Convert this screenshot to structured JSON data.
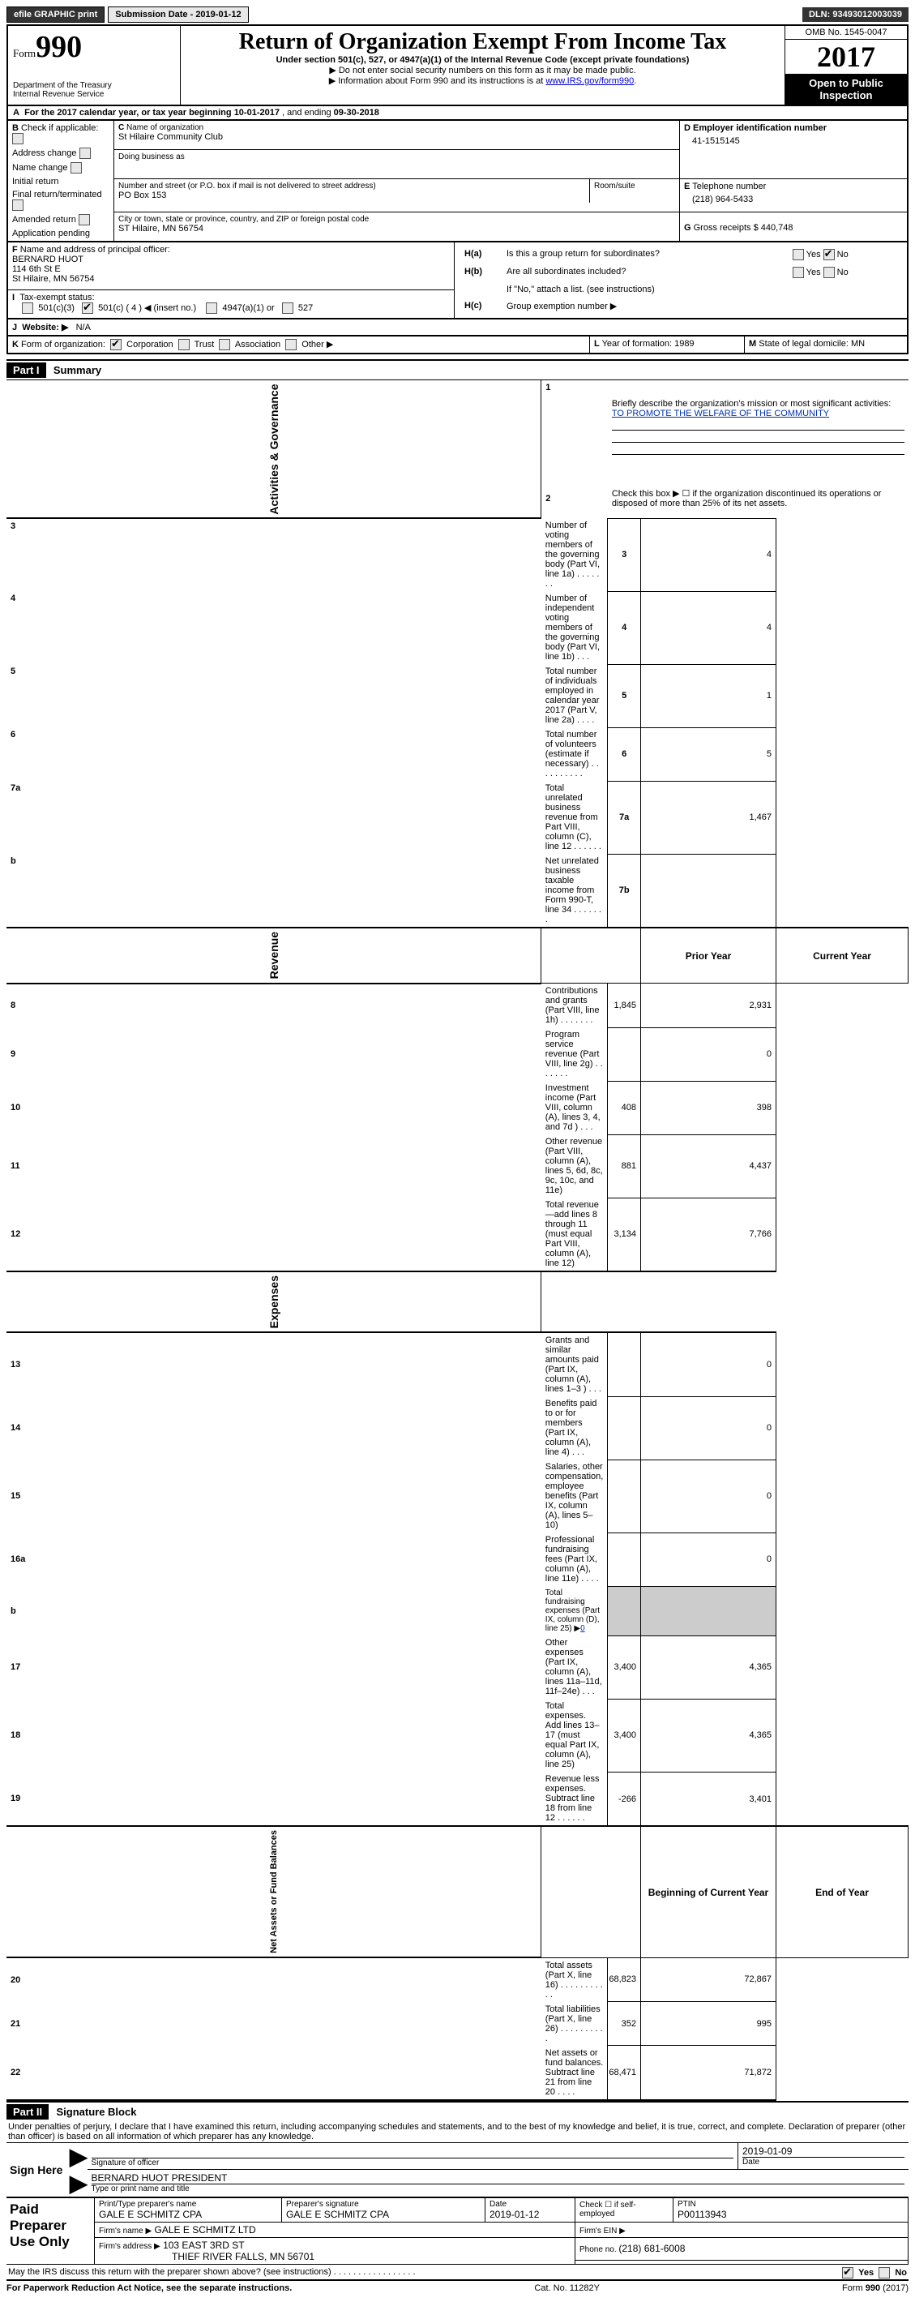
{
  "topbar": {
    "efile_label": "efile GRAPHIC print",
    "submission_label": "Submission Date - 2019-01-12",
    "dln_label": "DLN: 93493012003039"
  },
  "header": {
    "form_prefix": "Form",
    "form_number": "990",
    "dept": "Department of the Treasury",
    "irs": "Internal Revenue Service",
    "title": "Return of Organization Exempt From Income Tax",
    "subtitle": "Under section 501(c), 527, or 4947(a)(1) of the Internal Revenue Code (except private foundations)",
    "instr1": "▶ Do not enter social security numbers on this form as it may be made public.",
    "instr2_pre": "▶ Information about Form 990 and its instructions is at ",
    "instr2_link": "www.IRS.gov/form990",
    "omb": "OMB No. 1545-0047",
    "year": "2017",
    "open_public": "Open to Public Inspection"
  },
  "lineA": {
    "label_pre": "For the 2017 calendar year, or tax year beginning ",
    "begin": "10-01-2017",
    "mid": " , and ending ",
    "end": "09-30-2018"
  },
  "boxB": {
    "label": "Check if applicable:",
    "addr": "Address change",
    "name": "Name change",
    "initial": "Initial return",
    "final": "Final return/terminated",
    "amended": "Amended return",
    "pending": "Application pending"
  },
  "boxC": {
    "name_label": "Name of organization",
    "name": "St Hilaire Community Club",
    "dba_label": "Doing business as",
    "street_label": "Number and street (or P.O. box if mail is not delivered to street address)",
    "street": "PO Box 153",
    "room_label": "Room/suite",
    "city_label": "City or town, state or province, country, and ZIP or foreign postal code",
    "city": "ST Hilaire, MN  56754"
  },
  "boxD": {
    "label": "Employer identification number",
    "value": "41-1515145"
  },
  "boxE": {
    "label": "Telephone number",
    "value": "(218) 964-5433"
  },
  "boxG": {
    "label": "Gross receipts $ ",
    "value": "440,748"
  },
  "boxF": {
    "label": "Name and address of principal officer:",
    "name": "BERNARD HUOT",
    "street": "114 6th St E",
    "city": "St Hilaire, MN  56754"
  },
  "boxH": {
    "a_label": "Is this a group return for subordinates?",
    "b_label": "Are all subordinates included?",
    "b_note": "If \"No,\" attach a list. (see instructions)",
    "c_label": "Group exemption number ▶",
    "yes": "Yes",
    "no": "No"
  },
  "taxExempt": {
    "label": "Tax-exempt status:",
    "c501c3": "501(c)(3)",
    "c501c": "501(c) (",
    "c501c_num": "4",
    "c501c_suffix": ") ◀ (insert no.)",
    "c4947": "4947(a)(1) or",
    "c527": "527"
  },
  "website": {
    "label": "Website: ▶",
    "value": "N/A"
  },
  "formOrg": {
    "label": "Form of organization:",
    "corp": "Corporation",
    "trust": "Trust",
    "assoc": "Association",
    "other": "Other ▶"
  },
  "boxL": {
    "label": "Year of formation: ",
    "value": "1989"
  },
  "boxM": {
    "label": "State of legal domicile: ",
    "value": "MN"
  },
  "part1": {
    "header": "Part I",
    "title": "Summary",
    "q1": "Briefly describe the organization's mission or most significant activities:",
    "mission": "TO PROMOTE THE WELFARE OF THE COMMUNITY",
    "q2": "Check this box ▶ ☐  if the organization discontinued its operations or disposed of more than 25% of its net assets.",
    "vert_activities": "Activities & Governance",
    "vert_revenue": "Revenue",
    "vert_expenses": "Expenses",
    "vert_net": "Net Assets or Fund Balances",
    "prior_year": "Prior Year",
    "current_year": "Current Year",
    "begin_year": "Beginning of Current Year",
    "end_year": "End of Year",
    "rows_gov": [
      {
        "n": "3",
        "label": "Number of voting members of the governing body (Part VI, line 1a)   .    .    .    .    .    .    .",
        "box": "3",
        "val": "4"
      },
      {
        "n": "4",
        "label": "Number of independent voting members of the governing body (Part VI, line 1b)    .    .    .",
        "box": "4",
        "val": "4"
      },
      {
        "n": "5",
        "label": "Total number of individuals employed in calendar year 2017 (Part V, line 2a)    .    .    .    .",
        "box": "5",
        "val": "1"
      },
      {
        "n": "6",
        "label": "Total number of volunteers (estimate if necessary)    .    .    .    .    .    .    .    .    .    .",
        "box": "6",
        "val": "5"
      },
      {
        "n": "7a",
        "label": "Total unrelated business revenue from Part VIII, column (C), line 12    .    .    .    .    .    .",
        "box": "7a",
        "val": "1,467"
      },
      {
        "n": "b",
        "label": "Net unrelated business taxable income from Form 990-T, line 34    .    .    .    .    .    .    .",
        "box": "7b",
        "val": ""
      }
    ],
    "rows_rev": [
      {
        "n": "8",
        "label": "Contributions and grants (Part VIII, line 1h)    .    .    .    .    .    .    .",
        "py": "1,845",
        "cy": "2,931"
      },
      {
        "n": "9",
        "label": "Program service revenue (Part VIII, line 2g)    .    .    .    .    .    .    .",
        "py": "",
        "cy": "0"
      },
      {
        "n": "10",
        "label": "Investment income (Part VIII, column (A), lines 3, 4, and 7d )    .    .    .",
        "py": "408",
        "cy": "398"
      },
      {
        "n": "11",
        "label": "Other revenue (Part VIII, column (A), lines 5, 6d, 8c, 9c, 10c, and 11e)",
        "py": "881",
        "cy": "4,437"
      },
      {
        "n": "12",
        "label": "Total revenue—add lines 8 through 11 (must equal Part VIII, column (A), line 12)",
        "py": "3,134",
        "cy": "7,766"
      }
    ],
    "rows_exp": [
      {
        "n": "13",
        "label": "Grants and similar amounts paid (Part IX, column (A), lines 1–3 )    .    .    .",
        "py": "",
        "cy": "0"
      },
      {
        "n": "14",
        "label": "Benefits paid to or for members (Part IX, column (A), line 4)    .    .    .",
        "py": "",
        "cy": "0"
      },
      {
        "n": "15",
        "label": "Salaries, other compensation, employee benefits (Part IX, column (A), lines 5–10)",
        "py": "",
        "cy": "0"
      },
      {
        "n": "16a",
        "label": "Professional fundraising fees (Part IX, column (A), line 11e)    .    .    .    .",
        "py": "",
        "cy": "0"
      },
      {
        "n": "b",
        "label": "Total fundraising expenses (Part IX, column (D), line 25) ▶",
        "sub": "0",
        "gray": true
      },
      {
        "n": "17",
        "label": "Other expenses (Part IX, column (A), lines 11a–11d, 11f–24e)    .    .    .",
        "py": "3,400",
        "cy": "4,365"
      },
      {
        "n": "18",
        "label": "Total expenses. Add lines 13–17 (must equal Part IX, column (A), line 25)",
        "py": "3,400",
        "cy": "4,365"
      },
      {
        "n": "19",
        "label": "Revenue less expenses. Subtract line 18 from line 12    .    .    .    .    .    .",
        "py": "-266",
        "cy": "3,401"
      }
    ],
    "rows_net": [
      {
        "n": "20",
        "label": "Total assets (Part X, line 16)    .    .    .    .    .    .    .    .    .    .    .",
        "py": "68,823",
        "cy": "72,867"
      },
      {
        "n": "21",
        "label": "Total liabilities (Part X, line 26)    .    .    .    .    .    .    .    .    .    .",
        "py": "352",
        "cy": "995"
      },
      {
        "n": "22",
        "label": "Net assets or fund balances. Subtract line 21 from line 20    .    .    .    .",
        "py": "68,471",
        "cy": "71,872"
      }
    ]
  },
  "part2": {
    "header": "Part II",
    "title": "Signature Block",
    "declaration": "Under penalties of perjury, I declare that I have examined this return, including accompanying schedules and statements, and to the best of my knowledge and belief, it is true, correct, and complete. Declaration of preparer (other than officer) is based on all information of which preparer has any knowledge.",
    "sign_here": "Sign Here",
    "sig_officer": "Signature of officer",
    "sig_date": "2019-01-09",
    "date_label": "Date",
    "name_title": "BERNARD HUOT  PRESIDENT",
    "name_title_label": "Type or print name and title",
    "paid_prep": "Paid Preparer Use Only",
    "prep_name_label": "Print/Type preparer's name",
    "prep_name": "GALE E SCHMITZ CPA",
    "prep_sig_label": "Preparer's signature",
    "prep_sig": "GALE E SCHMITZ CPA",
    "prep_date_label": "Date",
    "prep_date": "2019-01-12",
    "check_if": "Check ☐ if self-employed",
    "ptin_label": "PTIN",
    "ptin": "P00113943",
    "firm_name_label": "Firm's name   ▶",
    "firm_name": "GALE E SCHMITZ LTD",
    "firm_ein_label": "Firm's EIN ▶",
    "firm_addr_label": "Firm's address ▶",
    "firm_addr1": "103 EAST 3RD ST",
    "firm_addr2": "THIEF RIVER FALLS, MN  56701",
    "phone_label": "Phone no. ",
    "phone": "(218) 681-6008",
    "discuss": "May the IRS discuss this return with the preparer shown above? (see instructions)    .    .    .    .    .    .    .    .    .    .    .    .    .    .    .    .    ."
  },
  "footer": {
    "paperwork": "For Paperwork Reduction Act Notice, see the separate instructions.",
    "catno": "Cat. No. 11282Y",
    "formyear": "Form 990 (2017)"
  }
}
